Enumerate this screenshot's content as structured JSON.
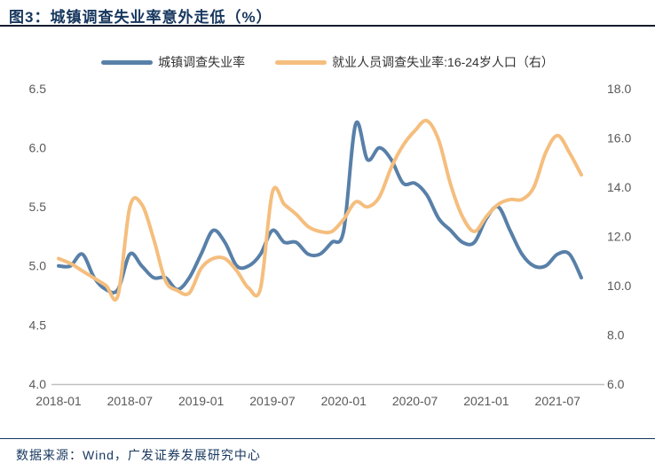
{
  "figure": {
    "title": "图3：城镇调查失业率意外走低（%）",
    "source": "数据来源：Wind，广发证券发展研究中心"
  },
  "legend": [
    {
      "label": "城镇调查失业率",
      "color": "#5880A8"
    },
    {
      "label": "就业人员调查失业率:16-24岁人口（右）",
      "color": "#F5BE7E"
    }
  ],
  "colors": {
    "title_navy": "#17375E",
    "blue_line": "#5880A8",
    "orange_line": "#F5BE7E",
    "tick_gray": "#595959",
    "axis_line_gray": "#BFBFBF"
  },
  "chart_data": {
    "type": "line",
    "title": "城镇调查失业率意外走低（%）",
    "x": [
      "2018-01",
      "2018-02",
      "2018-03",
      "2018-04",
      "2018-05",
      "2018-06",
      "2018-07",
      "2018-08",
      "2018-09",
      "2018-10",
      "2018-11",
      "2018-12",
      "2019-01",
      "2019-02",
      "2019-03",
      "2019-04",
      "2019-05",
      "2019-06",
      "2019-07",
      "2019-08",
      "2019-09",
      "2019-10",
      "2019-11",
      "2019-12",
      "2020-01",
      "2020-02",
      "2020-03",
      "2020-04",
      "2020-05",
      "2020-06",
      "2020-07",
      "2020-08",
      "2020-09",
      "2020-10",
      "2020-11",
      "2020-12",
      "2021-01",
      "2021-02",
      "2021-03",
      "2021-04",
      "2021-05",
      "2021-06",
      "2021-07",
      "2021-08",
      "2021-09"
    ],
    "x_tick_labels": [
      "2018-01",
      "2018-07",
      "2019-01",
      "2019-07",
      "2020-01",
      "2020-07",
      "2021-01",
      "2021-07"
    ],
    "series": [
      {
        "name": "城镇调查失业率",
        "axis": "left",
        "color": "#5880A8",
        "values": [
          5.0,
          5.0,
          5.1,
          4.9,
          4.8,
          4.8,
          5.1,
          5.0,
          4.9,
          4.9,
          4.8,
          4.9,
          5.1,
          5.3,
          5.2,
          5.0,
          5.0,
          5.1,
          5.3,
          5.2,
          5.2,
          5.1,
          5.1,
          5.2,
          5.3,
          6.2,
          5.9,
          6.0,
          5.9,
          5.7,
          5.7,
          5.6,
          5.4,
          5.3,
          5.2,
          5.2,
          5.4,
          5.5,
          5.3,
          5.1,
          5.0,
          5.0,
          5.1,
          5.1,
          4.9
        ]
      },
      {
        "name": "就业人员调查失业率:16-24岁人口（右）",
        "axis": "right",
        "color": "#F5BE7E",
        "values": [
          11.1,
          10.9,
          10.6,
          10.3,
          10.0,
          9.6,
          13.2,
          13.3,
          11.9,
          10.2,
          9.8,
          9.7,
          10.7,
          11.1,
          11.1,
          10.6,
          9.9,
          9.9,
          13.8,
          13.3,
          12.9,
          12.4,
          12.2,
          12.2,
          12.7,
          13.4,
          13.2,
          13.6,
          14.8,
          15.7,
          16.3,
          16.7,
          15.9,
          14.1,
          12.8,
          12.2,
          12.8,
          13.3,
          13.5,
          13.5,
          14.0,
          15.4,
          16.1,
          15.4,
          14.5
        ]
      }
    ],
    "left_axis": {
      "min": 4.0,
      "max": 6.5,
      "ticks": [
        "6.5",
        "6.0",
        "5.5",
        "5.0",
        "4.5",
        "4.0"
      ]
    },
    "right_axis": {
      "min": 6.0,
      "max": 18.0,
      "ticks": [
        "18.0",
        "16.0",
        "14.0",
        "12.0",
        "10.0",
        "8.0",
        "6.0"
      ]
    },
    "grid": false,
    "legend_position": "top",
    "smoothing": true
  }
}
